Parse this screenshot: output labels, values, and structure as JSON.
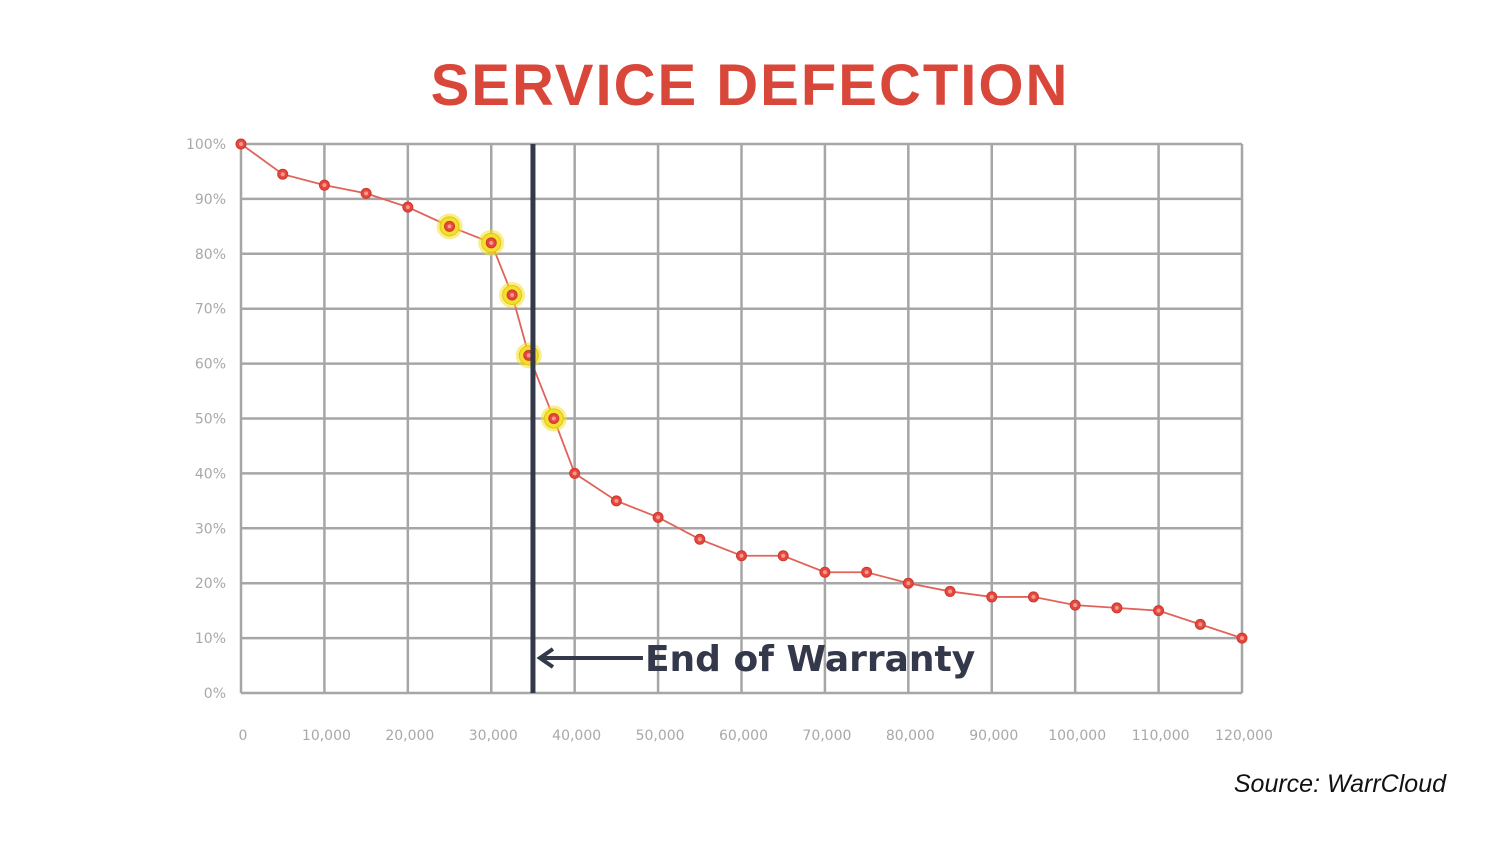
{
  "chart_data": {
    "type": "line",
    "title": "SERVICE DEFECTION",
    "xlabel": "",
    "ylabel": "",
    "xlim": [
      0,
      120000
    ],
    "ylim": [
      0,
      100
    ],
    "grid": true,
    "x_tick_labels": [
      "0",
      "10,000",
      "20,000",
      "30,000",
      "40,000",
      "50,000",
      "60,000",
      "70,000",
      "80,000",
      "90,000",
      "100,000",
      "110,000",
      "120,000"
    ],
    "y_tick_labels": [
      "0%",
      "10%",
      "20%",
      "30%",
      "40%",
      "50%",
      "60%",
      "70%",
      "80%",
      "90%",
      "100%"
    ],
    "series": [
      {
        "x": [
          0,
          5000,
          10000,
          15000,
          20000,
          25000,
          30000,
          32500,
          34500,
          37500,
          40000,
          45000,
          50000,
          55000,
          60000,
          65000,
          70000,
          75000,
          80000,
          85000,
          90000,
          95000,
          100000,
          105000,
          110000,
          115000,
          120000
        ],
        "y": [
          100,
          94.5,
          92.5,
          91,
          88.5,
          85,
          82,
          72.5,
          61.5,
          50,
          40,
          35,
          32,
          28,
          25,
          25,
          22,
          22,
          20,
          18.5,
          17.5,
          17.5,
          16,
          15.5,
          15,
          12.5,
          10
        ],
        "highlighted_x": [
          25000,
          30000,
          32500,
          34500,
          37500
        ]
      }
    ],
    "annotations": [
      {
        "type": "vertical_line",
        "x": 35000,
        "label": "End of Warranty"
      }
    ],
    "colors": {
      "title": "#d9473a",
      "line": "#e0645a",
      "marker": "#e8463c",
      "highlight": "#f3e02a",
      "grid": "#a6a6a6",
      "annotation": "#33394a"
    }
  },
  "source": "Source: WarrCloud"
}
